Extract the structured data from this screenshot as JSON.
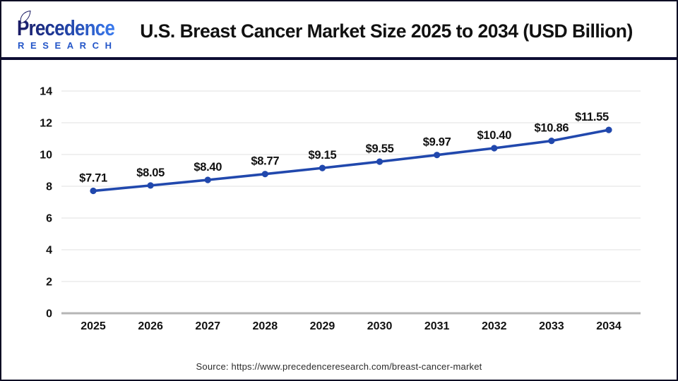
{
  "header": {
    "logo": {
      "name": "Precedence Research logo",
      "line1": "Precedence",
      "line2": "RESEARCH"
    },
    "title": "U.S. Breast Cancer Market Size 2025 to 2034 (USD Billion)"
  },
  "chart_data": {
    "type": "line",
    "title": "U.S. Breast Cancer Market Size 2025 to 2034 (USD Billion)",
    "categories": [
      "2025",
      "2026",
      "2027",
      "2028",
      "2029",
      "2030",
      "2031",
      "2032",
      "2033",
      "2034"
    ],
    "values": [
      7.71,
      8.05,
      8.4,
      8.77,
      9.15,
      9.55,
      9.97,
      10.4,
      10.86,
      11.55
    ],
    "point_labels": [
      "$7.71",
      "$8.05",
      "$8.40",
      "$8.77",
      "$9.15",
      "$9.55",
      "$9.97",
      "$10.40",
      "$10.86",
      "$11.55"
    ],
    "xlabel": "",
    "ylabel": "",
    "ylim": [
      0,
      14
    ],
    "yticks": [
      0,
      2,
      4,
      6,
      8,
      10,
      12,
      14
    ],
    "grid": true,
    "legend": "none",
    "line_color": "#2148ad",
    "marker": "circle"
  },
  "footer": {
    "source": "Source: https://www.precedenceresearch.com/breast-cancer-market"
  },
  "colors": {
    "divider_navy": "#0d0d33",
    "line_blue": "#2148ad",
    "gridline": "#e7e7e7",
    "zero_axis": "#b5b5b5",
    "label_text": "#111111",
    "logo_dark": "#191a63",
    "logo_blue": "#3a7bef",
    "research_blue": "#2456c8"
  }
}
